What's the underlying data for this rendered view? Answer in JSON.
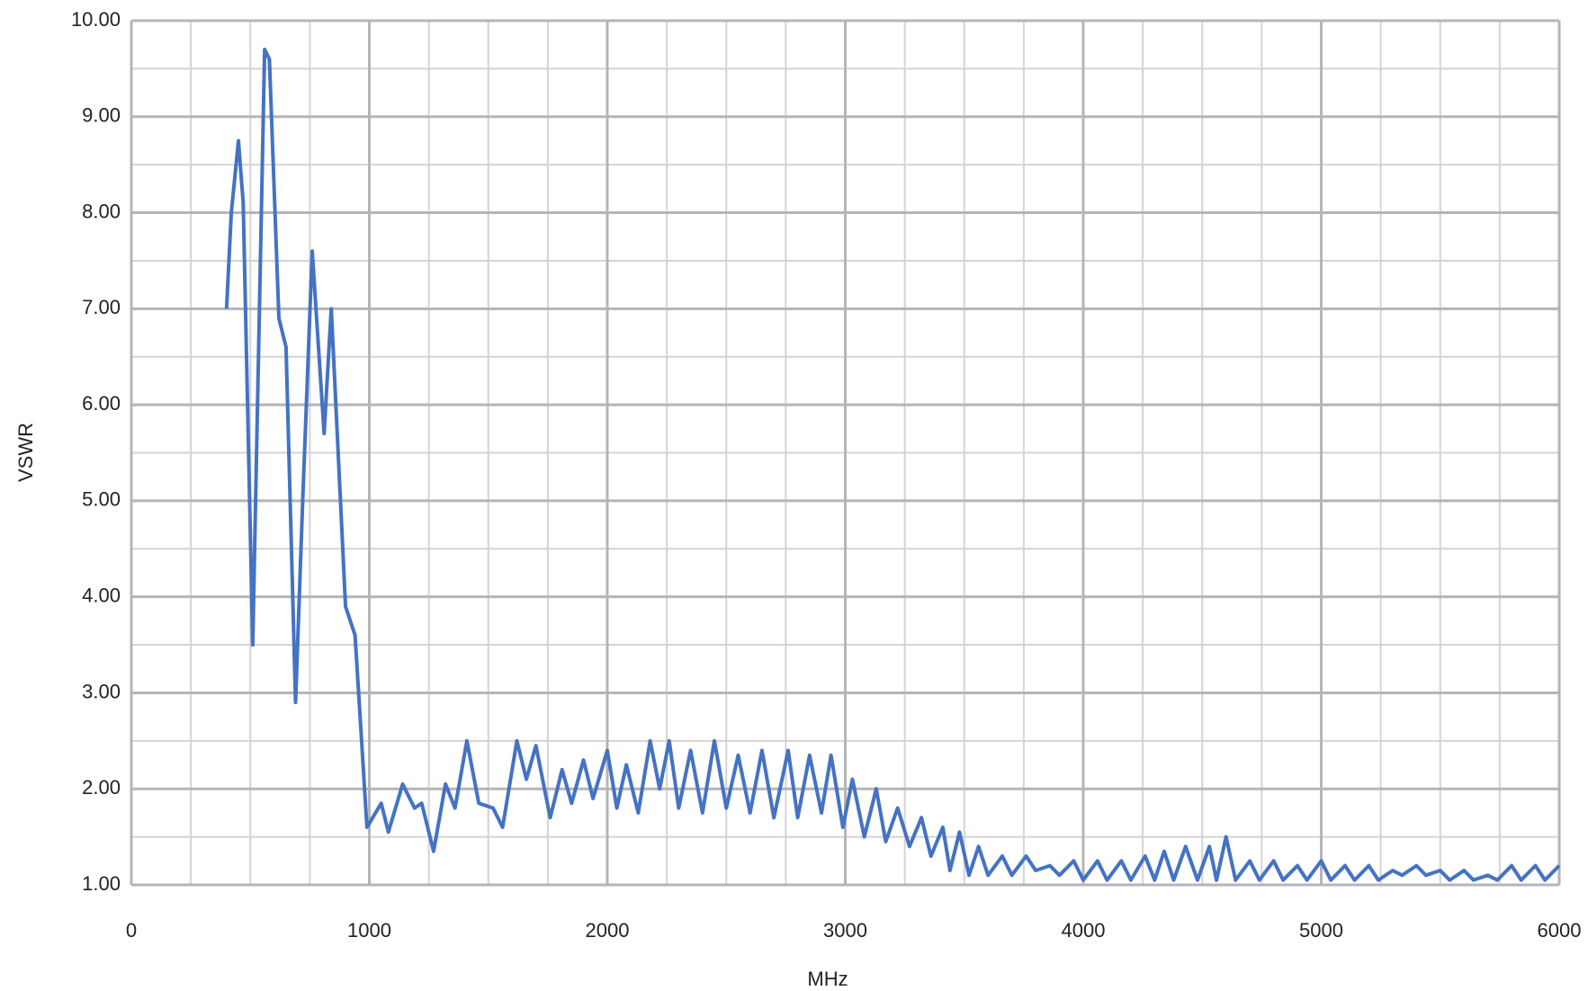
{
  "chart_data": {
    "type": "line",
    "x_label": "MHz",
    "y_label": "VSWR",
    "xlim": [
      0,
      6000
    ],
    "ylim": [
      1,
      10
    ],
    "xticks": [
      0,
      1000,
      2000,
      3000,
      4000,
      5000,
      6000
    ],
    "yticks": [
      {
        "value": 1,
        "label": "1.00"
      },
      {
        "value": 2,
        "label": "2.00"
      },
      {
        "value": 3,
        "label": "3.00"
      },
      {
        "value": 4,
        "label": "4.00"
      },
      {
        "value": 5,
        "label": "5.00"
      },
      {
        "value": 6,
        "label": "6.00"
      },
      {
        "value": 7,
        "label": "7.00"
      },
      {
        "value": 8,
        "label": "8.00"
      },
      {
        "value": 9,
        "label": "9.00"
      },
      {
        "value": 10,
        "label": "10.00"
      }
    ],
    "x_minor_ticks": [
      250,
      500,
      750,
      1250,
      1500,
      1750,
      2250,
      2500,
      2750,
      3250,
      3500,
      3750,
      4250,
      4500,
      4750,
      5250,
      5500,
      5750
    ],
    "y_minor_ticks": [
      1.5,
      2.5,
      3.5,
      4.5,
      5.5,
      6.5,
      7.5,
      8.5,
      9.5
    ],
    "grid": true,
    "series": [
      {
        "color": "#4472c4",
        "x": [
          400,
          420,
          450,
          470,
          510,
          560,
          580,
          620,
          650,
          690,
          720,
          760,
          810,
          840,
          900,
          940,
          990,
          1050,
          1080,
          1140,
          1190,
          1220,
          1270,
          1320,
          1360,
          1410,
          1460,
          1520,
          1560,
          1620,
          1660,
          1700,
          1760,
          1810,
          1850,
          1900,
          1940,
          2000,
          2040,
          2080,
          2130,
          2180,
          2220,
          2260,
          2300,
          2350,
          2400,
          2450,
          2500,
          2550,
          2600,
          2650,
          2700,
          2760,
          2800,
          2850,
          2900,
          2940,
          2990,
          3030,
          3080,
          3130,
          3170,
          3220,
          3270,
          3320,
          3360,
          3410,
          3440,
          3480,
          3520,
          3560,
          3600,
          3660,
          3700,
          3760,
          3800,
          3860,
          3900,
          3960,
          4000,
          4060,
          4100,
          4160,
          4200,
          4260,
          4300,
          4340,
          4380,
          4430,
          4480,
          4530,
          4560,
          4600,
          4640,
          4700,
          4740,
          4800,
          4840,
          4900,
          4940,
          5000,
          5040,
          5100,
          5140,
          5200,
          5240,
          5300,
          5340,
          5400,
          5440,
          5500,
          5540,
          5600,
          5640,
          5700,
          5740,
          5800,
          5840,
          5900,
          5940,
          6000
        ],
        "values": [
          7.0,
          8.0,
          8.75,
          8.1,
          3.5,
          9.7,
          9.6,
          6.9,
          6.6,
          2.9,
          5.0,
          7.6,
          5.7,
          7.0,
          3.9,
          3.6,
          1.6,
          1.85,
          1.55,
          2.05,
          1.8,
          1.85,
          1.35,
          2.05,
          1.8,
          2.5,
          1.85,
          1.8,
          1.6,
          2.5,
          2.1,
          2.45,
          1.7,
          2.2,
          1.85,
          2.3,
          1.9,
          2.4,
          1.8,
          2.25,
          1.75,
          2.5,
          2.0,
          2.5,
          1.8,
          2.4,
          1.75,
          2.5,
          1.8,
          2.35,
          1.75,
          2.4,
          1.7,
          2.4,
          1.7,
          2.35,
          1.75,
          2.35,
          1.6,
          2.1,
          1.5,
          2.0,
          1.45,
          1.8,
          1.4,
          1.7,
          1.3,
          1.6,
          1.15,
          1.55,
          1.1,
          1.4,
          1.1,
          1.3,
          1.1,
          1.3,
          1.15,
          1.2,
          1.1,
          1.25,
          1.05,
          1.25,
          1.05,
          1.25,
          1.05,
          1.3,
          1.05,
          1.35,
          1.05,
          1.4,
          1.05,
          1.4,
          1.05,
          1.5,
          1.05,
          1.25,
          1.05,
          1.25,
          1.05,
          1.2,
          1.05,
          1.25,
          1.05,
          1.2,
          1.05,
          1.2,
          1.05,
          1.15,
          1.1,
          1.2,
          1.1,
          1.15,
          1.05,
          1.15,
          1.05,
          1.1,
          1.05,
          1.2,
          1.05,
          1.2,
          1.05,
          1.2
        ]
      }
    ]
  }
}
